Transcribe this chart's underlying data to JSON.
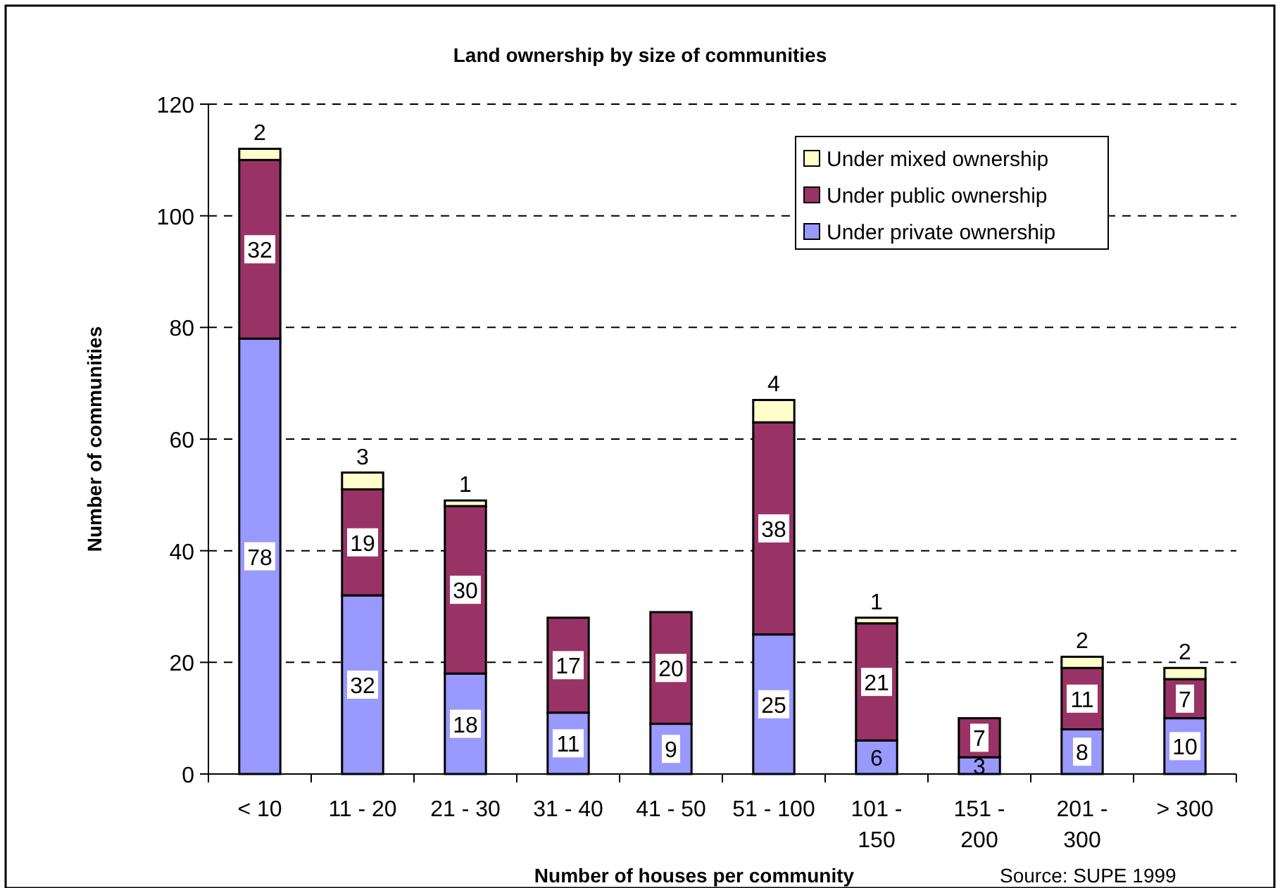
{
  "chart_data": {
    "type": "bar",
    "title": "Land ownership by size of communities",
    "xlabel": "Number of houses per community",
    "ylabel": "Number of communities",
    "annotations": [
      "Source: SUPE 1999"
    ],
    "categories": [
      "< 10",
      "11 - 20",
      "21 - 30",
      "31 - 40",
      "41 - 50",
      "51 - 100",
      "101 - 150",
      "151 - 200",
      "201 - 300",
      "> 300"
    ],
    "stacked": true,
    "data_labels": true,
    "grid": "y",
    "legend": "top right",
    "ylim": [
      0,
      120
    ],
    "yticks": [
      0,
      20,
      40,
      60,
      80,
      100,
      120
    ],
    "series": [
      {
        "name": "Under private ownership",
        "color": "#9999ff",
        "values": [
          78,
          32,
          18,
          11,
          9,
          25,
          6,
          3,
          8,
          10
        ]
      },
      {
        "name": "Under public ownership",
        "color": "#993366",
        "values": [
          32,
          19,
          30,
          17,
          20,
          38,
          21,
          7,
          11,
          7
        ]
      },
      {
        "name": "Under mixed ownership",
        "color": "#ffffcc",
        "values": [
          2,
          3,
          1,
          null,
          null,
          4,
          1,
          null,
          2,
          2
        ]
      }
    ]
  }
}
